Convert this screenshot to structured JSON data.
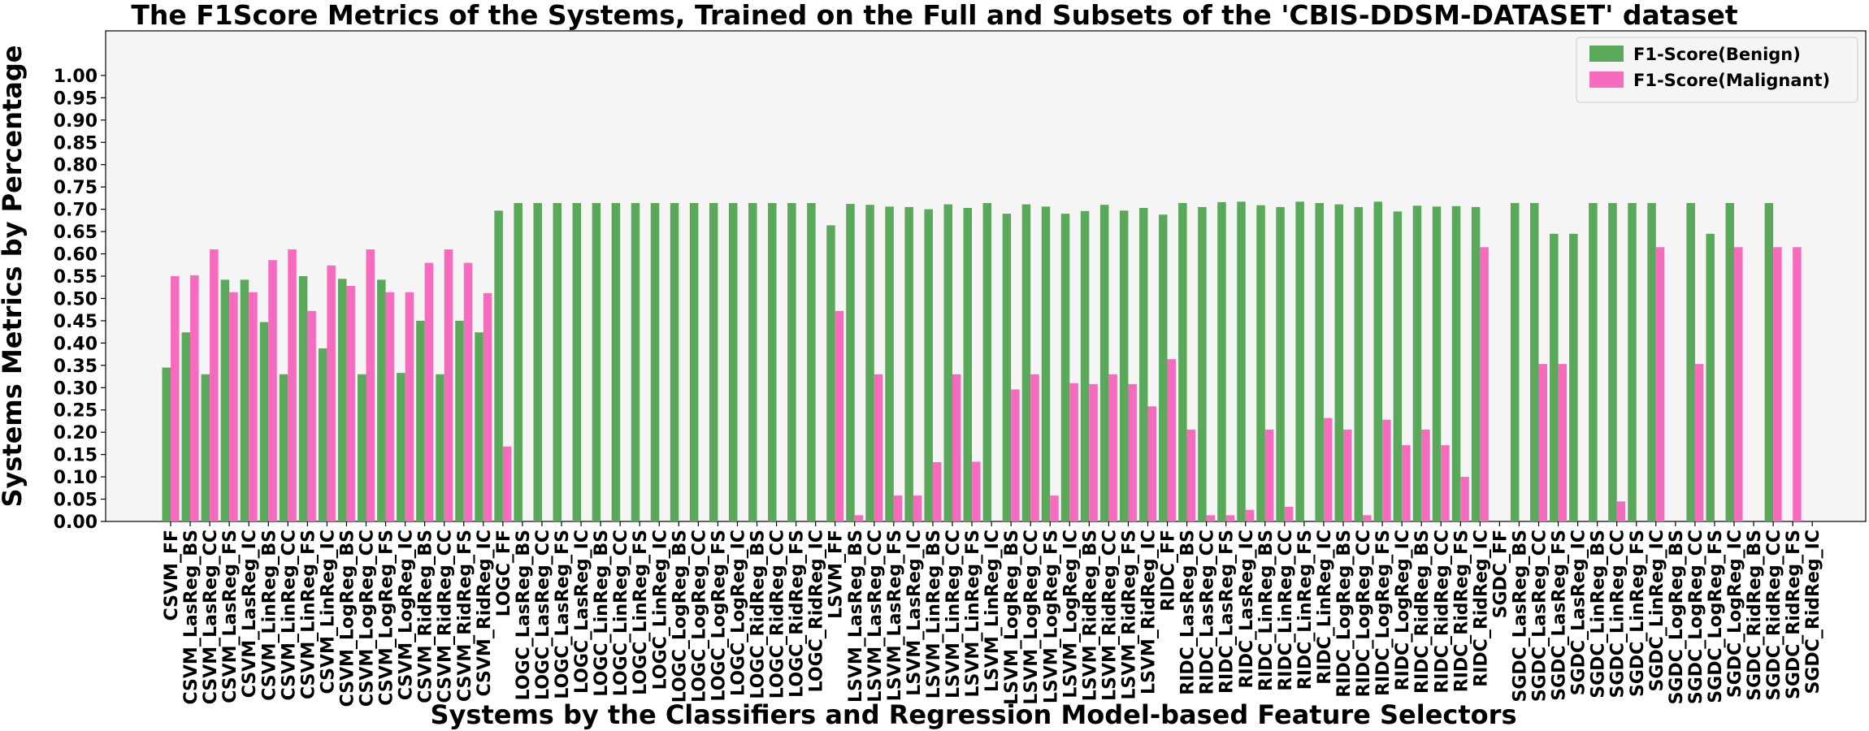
{
  "chart_data": {
    "type": "bar",
    "title": "The F1Score Metrics of the Systems, Trained on the Full and Subsets of the 'CBIS-DDSM-DATASET' dataset",
    "xlabel": "Systems by the Classifiers and Regression Model-based Feature Selectors",
    "ylabel": "Systems Metrics by Percentage",
    "ylim": [
      0,
      1.1
    ],
    "yticks": [
      "0.00",
      "0.05",
      "0.10",
      "0.15",
      "0.20",
      "0.25",
      "0.30",
      "0.35",
      "0.40",
      "0.45",
      "0.50",
      "0.55",
      "0.60",
      "0.65",
      "0.70",
      "0.75",
      "0.80",
      "0.85",
      "0.90",
      "0.95",
      "1.00"
    ],
    "grid": false,
    "legend_position": "top-right",
    "categories": [
      "CSVM_FF",
      "CSVM_LasReg_BS",
      "CSVM_LasReg_CC",
      "CSVM_LasReg_FS",
      "CSVM_LasReg_IC",
      "CSVM_LinReg_BS",
      "CSVM_LinReg_CC",
      "CSVM_LinReg_FS",
      "CSVM_LinReg_IC",
      "CSVM_LogReg_BS",
      "CSVM_LogReg_CC",
      "CSVM_LogReg_FS",
      "CSVM_LogReg_IC",
      "CSVM_RidReg_BS",
      "CSVM_RidReg_CC",
      "CSVM_RidReg_FS",
      "CSVM_RidReg_IC",
      "LOGC_FF",
      "LOGC_LasReg_BS",
      "LOGC_LasReg_CC",
      "LOGC_LasReg_FS",
      "LOGC_LasReg_IC",
      "LOGC_LinReg_BS",
      "LOGC_LinReg_CC",
      "LOGC_LinReg_FS",
      "LOGC_LinReg_IC",
      "LOGC_LogReg_BS",
      "LOGC_LogReg_CC",
      "LOGC_LogReg_FS",
      "LOGC_LogReg_IC",
      "LOGC_RidReg_BS",
      "LOGC_RidReg_CC",
      "LOGC_RidReg_FS",
      "LOGC_RidReg_IC",
      "LSVM_FF",
      "LSVM_LasReg_BS",
      "LSVM_LasReg_CC",
      "LSVM_LasReg_FS",
      "LSVM_LasReg_IC",
      "LSVM_LinReg_BS",
      "LSVM_LinReg_CC",
      "LSVM_LinReg_FS",
      "LSVM_LinReg_IC",
      "LSVM_LogReg_BS",
      "LSVM_LogReg_CC",
      "LSVM_LogReg_FS",
      "LSVM_LogReg_IC",
      "LSVM_RidReg_BS",
      "LSVM_RidReg_CC",
      "LSVM_RidReg_FS",
      "LSVM_RidReg_IC",
      "RIDC_FF",
      "RIDC_LasReg_BS",
      "RIDC_LasReg_CC",
      "RIDC_LasReg_FS",
      "RIDC_LasReg_IC",
      "RIDC_LinReg_BS",
      "RIDC_LinReg_CC",
      "RIDC_LinReg_FS",
      "RIDC_LinReg_IC",
      "RIDC_LogReg_BS",
      "RIDC_LogReg_CC",
      "RIDC_LogReg_FS",
      "RIDC_LogReg_IC",
      "RIDC_RidReg_BS",
      "RIDC_RidReg_CC",
      "RIDC_RidReg_FS",
      "RIDC_RidReg_IC",
      "SGDC_FF",
      "SGDC_LasReg_BS",
      "SGDC_LasReg_CC",
      "SGDC_LasReg_FS",
      "SGDC_LasReg_IC",
      "SGDC_LinReg_BS",
      "SGDC_LinReg_CC",
      "SGDC_LinReg_FS",
      "SGDC_LinReg_IC",
      "SGDC_LogReg_BS",
      "SGDC_LogReg_CC",
      "SGDC_LogReg_FS",
      "SGDC_LogReg_IC",
      "SGDC_RidReg_BS",
      "SGDC_RidReg_CC",
      "SGDC_RidReg_FS",
      "SGDC_RidReg_IC"
    ],
    "series": [
      {
        "name": "F1-Score(Benign)",
        "color": "#5aa85a",
        "values": [
          0.345,
          0.424,
          0.33,
          0.542,
          0.542,
          0.447,
          0.33,
          0.55,
          0.388,
          0.544,
          0.33,
          0.542,
          0.333,
          0.45,
          0.33,
          0.45,
          0.424,
          0.697,
          0.714,
          0.714,
          0.714,
          0.714,
          0.714,
          0.714,
          0.714,
          0.714,
          0.714,
          0.714,
          0.714,
          0.714,
          0.714,
          0.714,
          0.714,
          0.714,
          0.664,
          0.712,
          0.71,
          0.706,
          0.705,
          0.7,
          0.711,
          0.703,
          0.714,
          0.69,
          0.711,
          0.706,
          0.69,
          0.696,
          0.71,
          0.697,
          0.703,
          0.688,
          0.714,
          0.705,
          0.716,
          0.717,
          0.709,
          0.705,
          0.717,
          0.714,
          0.711,
          0.705,
          0.717,
          0.695,
          0.708,
          0.706,
          0.707,
          0.705,
          0.0,
          0.714,
          0.714,
          0.645,
          0.645,
          0.714,
          0.714,
          0.714,
          0.714,
          0.0,
          0.714,
          0.645,
          0.714,
          0.0,
          0.714,
          0.0,
          0.0
        ]
      },
      {
        "name": "F1-Score(Malignant)",
        "color": "#f76bbf",
        "values": [
          0.55,
          0.552,
          0.61,
          0.514,
          0.514,
          0.586,
          0.61,
          0.472,
          0.574,
          0.528,
          0.61,
          0.514,
          0.514,
          0.58,
          0.61,
          0.58,
          0.512,
          0.168,
          0.0,
          0.0,
          0.0,
          0.0,
          0.0,
          0.0,
          0.0,
          0.0,
          0.0,
          0.0,
          0.0,
          0.0,
          0.0,
          0.0,
          0.0,
          0.0,
          0.472,
          0.014,
          0.33,
          0.058,
          0.058,
          0.133,
          0.33,
          0.134,
          0.0,
          0.296,
          0.33,
          0.058,
          0.31,
          0.308,
          0.33,
          0.308,
          0.258,
          0.364,
          0.206,
          0.014,
          0.014,
          0.026,
          0.206,
          0.033,
          0.0,
          0.232,
          0.206,
          0.014,
          0.228,
          0.171,
          0.206,
          0.171,
          0.1,
          0.615,
          0.0,
          0.0,
          0.353,
          0.353,
          0.0,
          0.0,
          0.045,
          0.0,
          0.615,
          0.0,
          0.353,
          0.0,
          0.615,
          0.0,
          0.615,
          0.615,
          0.0
        ]
      }
    ]
  }
}
